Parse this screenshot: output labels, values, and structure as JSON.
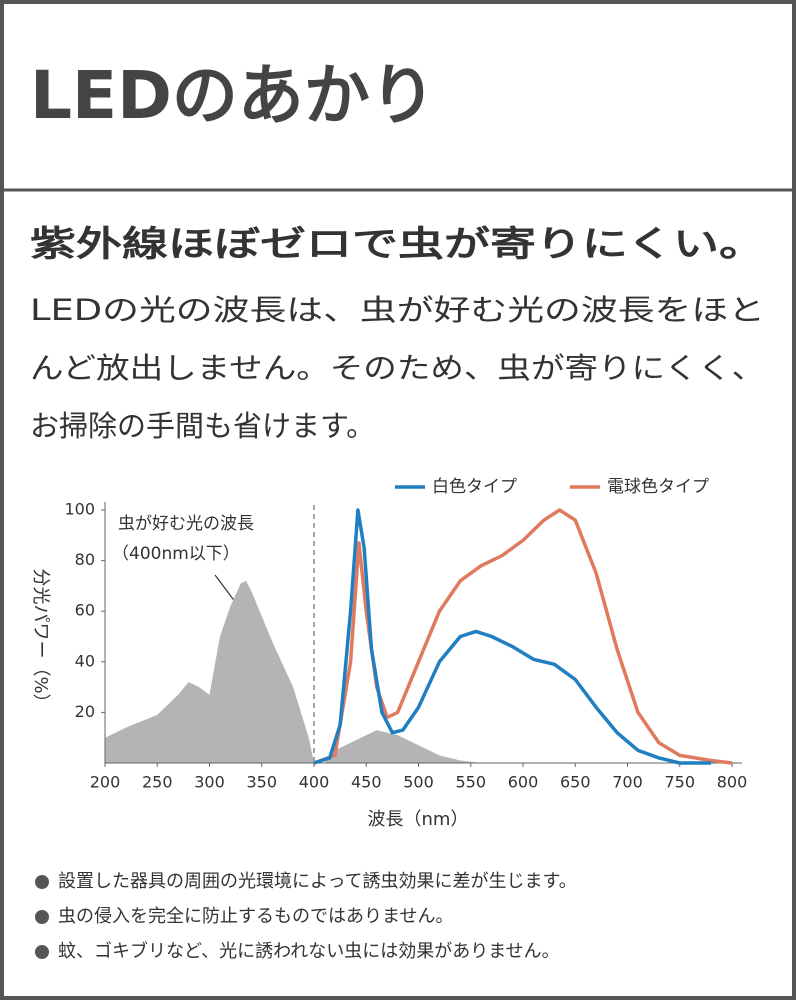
{
  "header": {
    "title": "LEDのあかり"
  },
  "heading": "紫外線ほぼゼロで虫が寄りにくい。",
  "body": [
    "LEDの光の波長は、虫が好む光の波長をほと",
    "んど放出しません。そのため、虫が寄りにくく、",
    "お掃除の手間も省けます。"
  ],
  "chart_data": {
    "type": "line",
    "xlabel": "波長（nm）",
    "ylabel": "分光パワー（%）",
    "xlim": [
      200,
      800
    ],
    "xticks": [
      200,
      250,
      300,
      350,
      400,
      450,
      500,
      550,
      600,
      650,
      700,
      750,
      800
    ],
    "ylim": [
      0,
      100
    ],
    "yticks": [
      20,
      40,
      60,
      80,
      100
    ],
    "grid": false,
    "legend": "top-right",
    "annotation": [
      "虫が好む光の波長",
      "（400nm以下）"
    ],
    "dashed_line_x": 400,
    "shaded_area": {
      "color": "#b4b4b4",
      "x": [
        200,
        220,
        250,
        270,
        280,
        290,
        300,
        310,
        320,
        330,
        335,
        340,
        360,
        380,
        395,
        400,
        410,
        420,
        440,
        460,
        470,
        480,
        500,
        520,
        540,
        560
      ],
      "values": [
        10,
        14,
        19,
        27,
        32,
        30,
        27,
        50,
        62,
        71,
        72,
        68,
        48,
        30,
        10,
        0,
        0,
        5,
        9,
        13,
        12,
        11,
        7,
        3,
        1,
        0
      ]
    },
    "series": [
      {
        "name": "白色タイプ",
        "color": "#1f7fc0",
        "x": [
          400,
          415,
          425,
          435,
          442,
          448,
          455,
          465,
          475,
          485,
          500,
          520,
          540,
          555,
          570,
          590,
          610,
          630,
          650,
          670,
          690,
          710,
          730,
          750,
          780
        ],
        "values": [
          0,
          2,
          15,
          60,
          100,
          85,
          45,
          20,
          12,
          13,
          22,
          40,
          50,
          52,
          50,
          46,
          41,
          39,
          33,
          22,
          12,
          5,
          2,
          0,
          0
        ]
      },
      {
        "name": "電球色タイプ",
        "color": "#e07a5f",
        "x": [
          400,
          420,
          435,
          443,
          450,
          460,
          470,
          480,
          500,
          520,
          540,
          560,
          580,
          600,
          620,
          635,
          650,
          670,
          690,
          710,
          730,
          750,
          780,
          800
        ],
        "values": [
          0,
          3,
          40,
          87,
          60,
          30,
          18,
          20,
          40,
          60,
          72,
          78,
          82,
          88,
          96,
          100,
          96,
          75,
          45,
          20,
          8,
          3,
          1,
          0
        ]
      }
    ]
  },
  "notes": [
    "設置した器具の周囲の光環境によって誘虫効果に差が生じます。",
    "虫の侵入を完全に防止するものではありません。",
    "蚊、ゴキブリなど、光に誘われない虫には効果がありません。"
  ]
}
